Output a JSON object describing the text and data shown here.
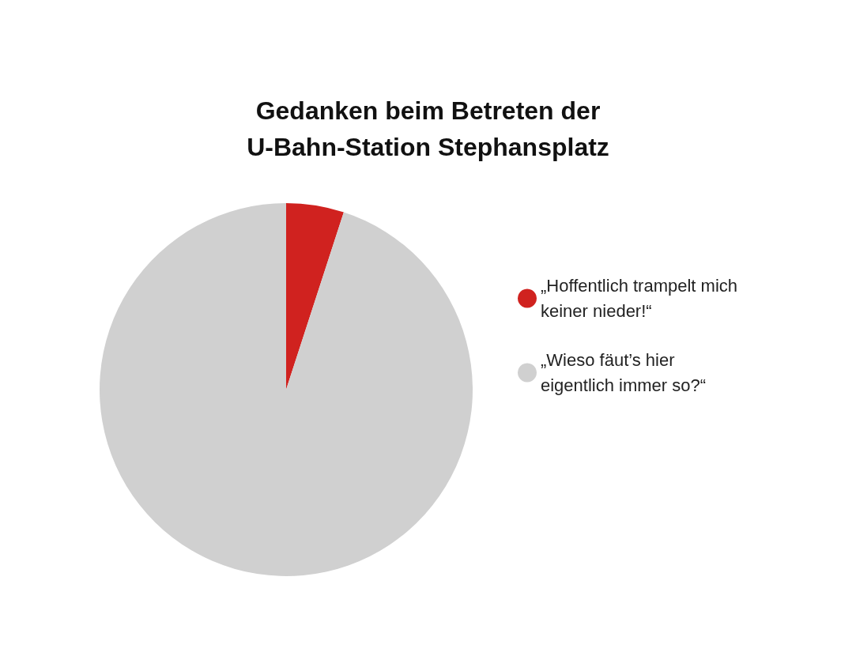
{
  "chart_data": {
    "type": "pie",
    "title": "Gedanken beim Betreten der\nU-Bahn-Station Stephansplatz",
    "categories": [
      "„Hoffentlich trampelt mich keiner nieder!“",
      "„Wieso fäut’s hier eigentlich immer so?“"
    ],
    "values": [
      5,
      95
    ],
    "colors": [
      "#d0221f",
      "#d0d0d0"
    ],
    "legend": "right"
  }
}
